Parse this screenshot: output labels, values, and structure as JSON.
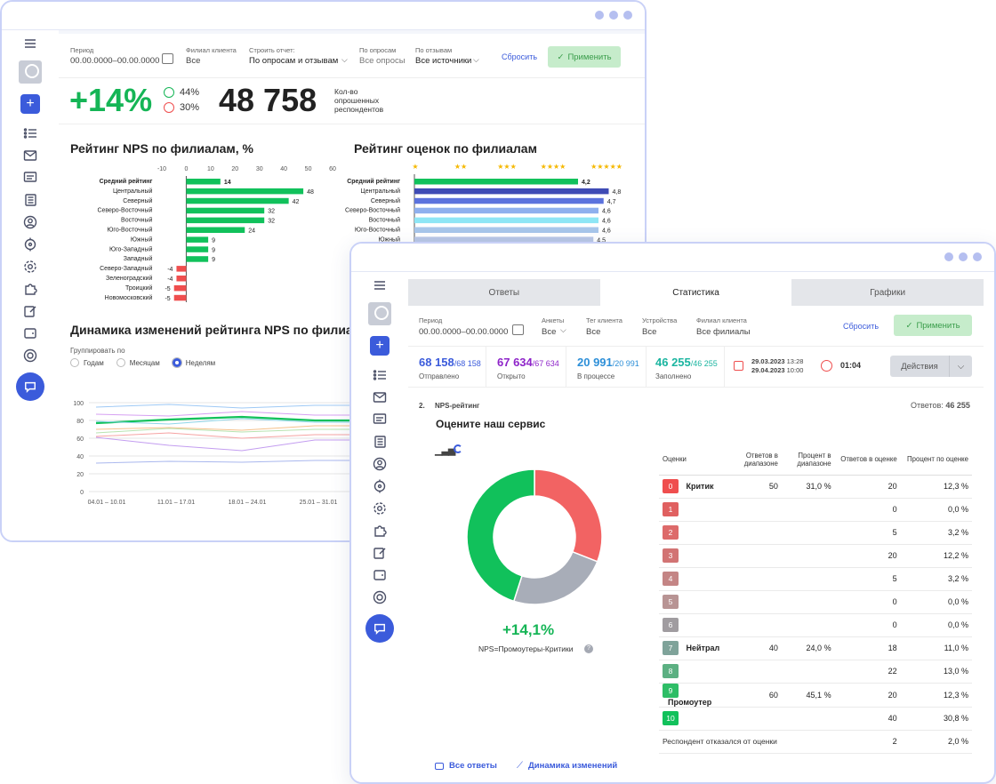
{
  "back": {
    "filters": {
      "period_label": "Период",
      "period_value": "00.00.0000–00.00.0000",
      "branch_label": "Филиал клиента",
      "branch_value": "Все",
      "report_label": "Строить отчет:",
      "report_value": "По опросам и отзывам",
      "surveys_label": "По опросам",
      "surveys_value": "Все опросы",
      "reviews_label": "По отзывам",
      "reviews_value": "Все источники",
      "reset": "Сбросить",
      "apply": "Применить"
    },
    "kpi": {
      "nps": "+14%",
      "happy": "44%",
      "sad": "30%",
      "count": "48 758",
      "count_label": "Кол-во опрошенных респондентов"
    },
    "nps_title": "Рейтинг NPS по филиалам, %",
    "rating_title": "Рейтинг оценок по филиалам",
    "dyn_title": "Динамика изменений рейтинга NPS по филиалам",
    "group_label": "Группировать по",
    "group_options": [
      "Годам",
      "Месяцам",
      "Неделям"
    ]
  },
  "front": {
    "tabs": [
      "Ответы",
      "Статистика",
      "Графики"
    ],
    "filters": {
      "period_label": "Период",
      "period_value": "00.00.0000–00.00.0000",
      "forms_label": "Анкеты",
      "forms_value": "Все",
      "tag_label": "Тег клиента",
      "tag_value": "Все",
      "device_label": "Устройства",
      "device_value": "Все",
      "branch_label": "Филиал клиента",
      "branch_value": "Все филиалы",
      "reset": "Сбросить",
      "apply": "Применить"
    },
    "stats": {
      "sent": "68 158",
      "sent_total": "/68 158",
      "sent_label": "Отправлено",
      "opened": "67 634",
      "opened_total": "/67 634",
      "opened_label": "Открыто",
      "progress": "20 991",
      "progress_total": "/20 991",
      "progress_label": "В процессе",
      "filled": "46 255",
      "filled_total": "/46 255",
      "filled_label": "Заполнено",
      "date1": "29.03.2023",
      "time1": "13:28",
      "date2": "29.04.2023",
      "time2": "10:00",
      "duration": "01:04",
      "actions": "Действия"
    },
    "question": {
      "num": "2.",
      "type": "NPS-рейтинг",
      "answers_label": "Ответов:",
      "answers_value": "46 255",
      "title": "Оцените наш сервис"
    },
    "nps_value": "+14,1%",
    "nps_formula": "NPS=Промоутеры-Критики",
    "links": {
      "all": "Все ответы",
      "dynamics": "Динамика изменений"
    },
    "table_head": [
      "Оценки",
      "Ответов в диапазоне",
      "Процент в диапазоне",
      "Ответов в оценке",
      "Процент по оценке"
    ],
    "refused": {
      "label": "Респондент отказался от оценки",
      "count": "2",
      "pct": "2,0 %"
    }
  },
  "chart_data": [
    {
      "type": "bar",
      "title": "Рейтинг NPS по филиалам, %",
      "xlim": [
        -10,
        60
      ],
      "ticks": [
        -10,
        0,
        10,
        20,
        30,
        40,
        50,
        60
      ],
      "categories": [
        "Средний рейтинг",
        "Центральный",
        "Северный",
        "Северо-Восточный",
        "Восточный",
        "Юго-Восточный",
        "Южный",
        "Юго-Западный",
        "Западный",
        "Северо-Западный",
        "Зеленоградский",
        "Троицкий",
        "Новомосковский"
      ],
      "values": [
        14,
        48,
        42,
        32,
        32,
        24,
        9,
        9,
        9,
        -4,
        -4,
        -5,
        -5
      ]
    },
    {
      "type": "bar",
      "title": "Рейтинг оценок по филиалам",
      "xlim": [
        1,
        5
      ],
      "categories": [
        "Средний рейтинг",
        "Центральный",
        "Северный",
        "Северо-Восточный",
        "Восточный",
        "Юго-Восточный",
        "Южный"
      ],
      "values": [
        4.2,
        4.8,
        4.7,
        4.6,
        4.6,
        4.6,
        4.5
      ],
      "labels": [
        "4,2",
        "4,8",
        "4,7",
        "4,6",
        "4,6",
        "4,6",
        "4,5"
      ],
      "stars": [
        "★",
        "★★",
        "★★★",
        "★★★★",
        "★★★★★"
      ]
    },
    {
      "type": "line",
      "title": "Динамика изменений рейтинга NPS по филиалам",
      "ylim": [
        0,
        100
      ],
      "yticks": [
        0,
        20,
        40,
        60,
        80,
        100
      ],
      "x": [
        "04.01 – 10.01",
        "11.01 – 17.01",
        "18.01 – 24.01",
        "25.01 – 31.01"
      ]
    },
    {
      "type": "pie",
      "categories": [
        "Критики",
        "Нейтралы",
        "Промоутеры"
      ],
      "values": [
        31.0,
        24.0,
        45.1
      ],
      "colors": [
        "#f26363",
        "#a8adb8",
        "#11c15b"
      ]
    }
  ],
  "ratings": [
    {
      "score": "0",
      "color": "#ef4e4e",
      "group": "Критик",
      "range_count": "50",
      "range_pct": "31,0 %",
      "count": "20",
      "pct": "12,3 %"
    },
    {
      "score": "1",
      "color": "#e06060",
      "group": "",
      "range_count": "",
      "range_pct": "",
      "count": "0",
      "pct": "0,0 %"
    },
    {
      "score": "2",
      "color": "#dd6a6a",
      "group": "",
      "range_count": "",
      "range_pct": "",
      "count": "5",
      "pct": "3,2 %"
    },
    {
      "score": "3",
      "color": "#d27474",
      "group": "",
      "range_count": "",
      "range_pct": "",
      "count": "20",
      "pct": "12,2 %"
    },
    {
      "score": "4",
      "color": "#c48585",
      "group": "",
      "range_count": "",
      "range_pct": "",
      "count": "5",
      "pct": "3,2 %"
    },
    {
      "score": "5",
      "color": "#b89494",
      "group": "",
      "range_count": "",
      "range_pct": "",
      "count": "0",
      "pct": "0,0 %"
    },
    {
      "score": "6",
      "color": "#a09ca0",
      "group": "",
      "range_count": "",
      "range_pct": "",
      "count": "0",
      "pct": "0,0 %"
    },
    {
      "score": "7",
      "color": "#7fa39a",
      "group": "Нейтрал",
      "range_count": "40",
      "range_pct": "24,0 %",
      "count": "18",
      "pct": "11,0 %"
    },
    {
      "score": "8",
      "color": "#5cb082",
      "group": "",
      "range_count": "",
      "range_pct": "",
      "count": "22",
      "pct": "13,0 %"
    },
    {
      "score": "9",
      "color": "#2ebd66",
      "group": "Промоутер",
      "range_count": "60",
      "range_pct": "45,1 %",
      "count": "20",
      "pct": "12,3 %"
    },
    {
      "score": "10",
      "color": "#11c15b",
      "group": "",
      "range_count": "",
      "range_pct": "",
      "count": "40",
      "pct": "30,8 %"
    }
  ]
}
